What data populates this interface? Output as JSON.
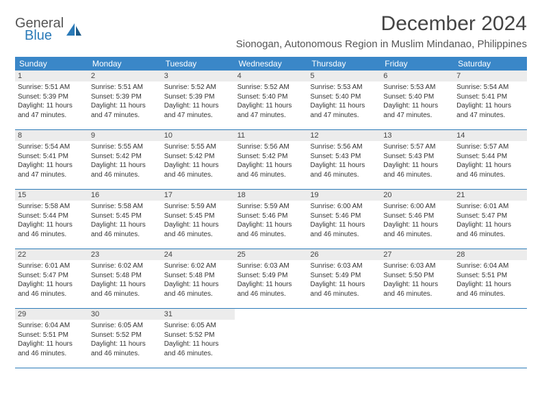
{
  "brand": {
    "line1": "General",
    "line2": "Blue"
  },
  "title": "December 2024",
  "location": "Sionogan, Autonomous Region in Muslim Mindanao, Philippines",
  "day_names": [
    "Sunday",
    "Monday",
    "Tuesday",
    "Wednesday",
    "Thursday",
    "Friday",
    "Saturday"
  ],
  "colors": {
    "header_bg": "#3a87c8",
    "header_text": "#ffffff",
    "daynum_bg": "#ececec",
    "separator": "#2a7ab8",
    "logo_blue": "#2a7ab8"
  },
  "days": [
    {
      "num": "1",
      "sunrise": "Sunrise: 5:51 AM",
      "sunset": "Sunset: 5:39 PM",
      "daylight": "Daylight: 11 hours and 47 minutes."
    },
    {
      "num": "2",
      "sunrise": "Sunrise: 5:51 AM",
      "sunset": "Sunset: 5:39 PM",
      "daylight": "Daylight: 11 hours and 47 minutes."
    },
    {
      "num": "3",
      "sunrise": "Sunrise: 5:52 AM",
      "sunset": "Sunset: 5:39 PM",
      "daylight": "Daylight: 11 hours and 47 minutes."
    },
    {
      "num": "4",
      "sunrise": "Sunrise: 5:52 AM",
      "sunset": "Sunset: 5:40 PM",
      "daylight": "Daylight: 11 hours and 47 minutes."
    },
    {
      "num": "5",
      "sunrise": "Sunrise: 5:53 AM",
      "sunset": "Sunset: 5:40 PM",
      "daylight": "Daylight: 11 hours and 47 minutes."
    },
    {
      "num": "6",
      "sunrise": "Sunrise: 5:53 AM",
      "sunset": "Sunset: 5:40 PM",
      "daylight": "Daylight: 11 hours and 47 minutes."
    },
    {
      "num": "7",
      "sunrise": "Sunrise: 5:54 AM",
      "sunset": "Sunset: 5:41 PM",
      "daylight": "Daylight: 11 hours and 47 minutes."
    },
    {
      "num": "8",
      "sunrise": "Sunrise: 5:54 AM",
      "sunset": "Sunset: 5:41 PM",
      "daylight": "Daylight: 11 hours and 47 minutes."
    },
    {
      "num": "9",
      "sunrise": "Sunrise: 5:55 AM",
      "sunset": "Sunset: 5:42 PM",
      "daylight": "Daylight: 11 hours and 46 minutes."
    },
    {
      "num": "10",
      "sunrise": "Sunrise: 5:55 AM",
      "sunset": "Sunset: 5:42 PM",
      "daylight": "Daylight: 11 hours and 46 minutes."
    },
    {
      "num": "11",
      "sunrise": "Sunrise: 5:56 AM",
      "sunset": "Sunset: 5:42 PM",
      "daylight": "Daylight: 11 hours and 46 minutes."
    },
    {
      "num": "12",
      "sunrise": "Sunrise: 5:56 AM",
      "sunset": "Sunset: 5:43 PM",
      "daylight": "Daylight: 11 hours and 46 minutes."
    },
    {
      "num": "13",
      "sunrise": "Sunrise: 5:57 AM",
      "sunset": "Sunset: 5:43 PM",
      "daylight": "Daylight: 11 hours and 46 minutes."
    },
    {
      "num": "14",
      "sunrise": "Sunrise: 5:57 AM",
      "sunset": "Sunset: 5:44 PM",
      "daylight": "Daylight: 11 hours and 46 minutes."
    },
    {
      "num": "15",
      "sunrise": "Sunrise: 5:58 AM",
      "sunset": "Sunset: 5:44 PM",
      "daylight": "Daylight: 11 hours and 46 minutes."
    },
    {
      "num": "16",
      "sunrise": "Sunrise: 5:58 AM",
      "sunset": "Sunset: 5:45 PM",
      "daylight": "Daylight: 11 hours and 46 minutes."
    },
    {
      "num": "17",
      "sunrise": "Sunrise: 5:59 AM",
      "sunset": "Sunset: 5:45 PM",
      "daylight": "Daylight: 11 hours and 46 minutes."
    },
    {
      "num": "18",
      "sunrise": "Sunrise: 5:59 AM",
      "sunset": "Sunset: 5:46 PM",
      "daylight": "Daylight: 11 hours and 46 minutes."
    },
    {
      "num": "19",
      "sunrise": "Sunrise: 6:00 AM",
      "sunset": "Sunset: 5:46 PM",
      "daylight": "Daylight: 11 hours and 46 minutes."
    },
    {
      "num": "20",
      "sunrise": "Sunrise: 6:00 AM",
      "sunset": "Sunset: 5:46 PM",
      "daylight": "Daylight: 11 hours and 46 minutes."
    },
    {
      "num": "21",
      "sunrise": "Sunrise: 6:01 AM",
      "sunset": "Sunset: 5:47 PM",
      "daylight": "Daylight: 11 hours and 46 minutes."
    },
    {
      "num": "22",
      "sunrise": "Sunrise: 6:01 AM",
      "sunset": "Sunset: 5:47 PM",
      "daylight": "Daylight: 11 hours and 46 minutes."
    },
    {
      "num": "23",
      "sunrise": "Sunrise: 6:02 AM",
      "sunset": "Sunset: 5:48 PM",
      "daylight": "Daylight: 11 hours and 46 minutes."
    },
    {
      "num": "24",
      "sunrise": "Sunrise: 6:02 AM",
      "sunset": "Sunset: 5:48 PM",
      "daylight": "Daylight: 11 hours and 46 minutes."
    },
    {
      "num": "25",
      "sunrise": "Sunrise: 6:03 AM",
      "sunset": "Sunset: 5:49 PM",
      "daylight": "Daylight: 11 hours and 46 minutes."
    },
    {
      "num": "26",
      "sunrise": "Sunrise: 6:03 AM",
      "sunset": "Sunset: 5:49 PM",
      "daylight": "Daylight: 11 hours and 46 minutes."
    },
    {
      "num": "27",
      "sunrise": "Sunrise: 6:03 AM",
      "sunset": "Sunset: 5:50 PM",
      "daylight": "Daylight: 11 hours and 46 minutes."
    },
    {
      "num": "28",
      "sunrise": "Sunrise: 6:04 AM",
      "sunset": "Sunset: 5:51 PM",
      "daylight": "Daylight: 11 hours and 46 minutes."
    },
    {
      "num": "29",
      "sunrise": "Sunrise: 6:04 AM",
      "sunset": "Sunset: 5:51 PM",
      "daylight": "Daylight: 11 hours and 46 minutes."
    },
    {
      "num": "30",
      "sunrise": "Sunrise: 6:05 AM",
      "sunset": "Sunset: 5:52 PM",
      "daylight": "Daylight: 11 hours and 46 minutes."
    },
    {
      "num": "31",
      "sunrise": "Sunrise: 6:05 AM",
      "sunset": "Sunset: 5:52 PM",
      "daylight": "Daylight: 11 hours and 46 minutes."
    }
  ]
}
